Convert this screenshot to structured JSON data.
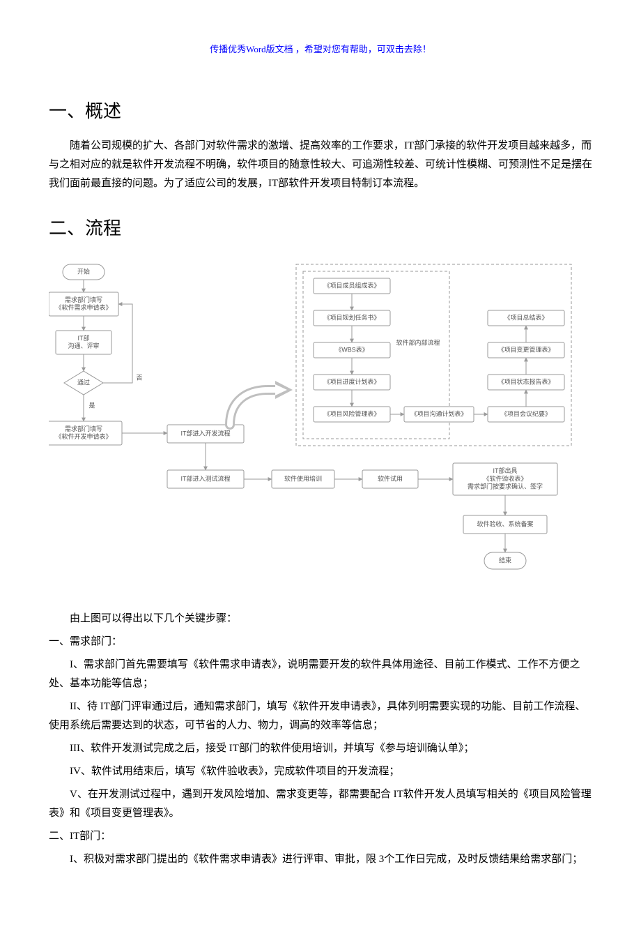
{
  "header": {
    "note": "传播优秀Word版文档 ，希望对您有帮助，可双击去除！"
  },
  "sections": {
    "s1_title": "一、概述",
    "s1_body": "随着公司规模的扩大、各部门对软件需求的激增、提高效率的工作要求，IT部门承接的软件开发项目越来越多，而与之相对应的就是软件开发流程不明确，软件项目的随意性较大、可追溯性较差、可统计性模糊、可预测性不足是摆在我们面前最直接的问题。为了适应公司的发展，IT部软件开发项目特制订本流程。",
    "s2_title": "二、流程",
    "intro": "由上图可以得出以下几个关键步骤：",
    "req_dept_title": "一、需求部门：",
    "req_i": "I、需求部门首先需要填写《软件需求申请表》，说明需要开发的软件具体用途径、目前工作模式、工作不方便之处、基本功能等信息；",
    "req_ii": "II、待 IT部门评审通过后，通知需求部门，填写《软件开发申请表》，具体列明需要实现的功能、目前工作流程、使用系统后需要达到的状态，可节省的人力、物力，调高的效率等信息；",
    "req_iii": "III、软件开发测试完成之后，接受 IT部门的软件使用培训，并填写《参与培训确认单》；",
    "req_iv": "IV、软件试用结束后，填写《软件验收表》，完成软件项目的开发流程；",
    "req_v": "V、在开发测试过程中，遇到开发风险增加、需求变更等，都需要配合 IT软件开发人员填写相关的《项目风险管理表》和《项目变更管理表》。",
    "it_dept_title": "二、IT部门：",
    "it_i": "I、积极对需求部门提出的《软件需求申请表》进行评审、审批，限 3个工作日完成，及时反馈结果给需求部门；"
  },
  "flow": {
    "start": "开始",
    "n1": "需求部门填写\n《软件需求申请表》",
    "n2": "IT部\n沟通、评审",
    "d1": "通过",
    "d1_no": "否",
    "d1_yes": "是",
    "n3": "需求部门填写\n《软件开发申请表》",
    "n4": "IT部进入开发流程",
    "n5": "IT部进入测试流程",
    "n6": "软件使用培训",
    "n7": "软件试用",
    "n8": "IT部出具\n《软件验收表》\n需求部门按要求确认、签字",
    "n9": "软件验收、系统备案",
    "end": "结束",
    "group_title": "软件部内部流程",
    "g1": "《项目成员组成表》",
    "g2": "《项目规划任务书》",
    "g3": "《WBS表》",
    "g4": "《项目进度计划表》",
    "g5": "《项目风险管理表》",
    "g6": "《项目沟通计划表》",
    "g7": "《项目会议纪要》",
    "g8": "《项目状态报告表》",
    "g9": "《项目变更管理表》",
    "g10": "《项目总结表》"
  },
  "style": {
    "box_stroke": "#9a9a9a",
    "box_fill": "#ffffff",
    "dash_stroke": "#9a9a9a",
    "text_color": "#555555",
    "font_size": 9,
    "font_family": "SimSun, sans-serif",
    "arrow_fill": "#bfbfbf"
  }
}
